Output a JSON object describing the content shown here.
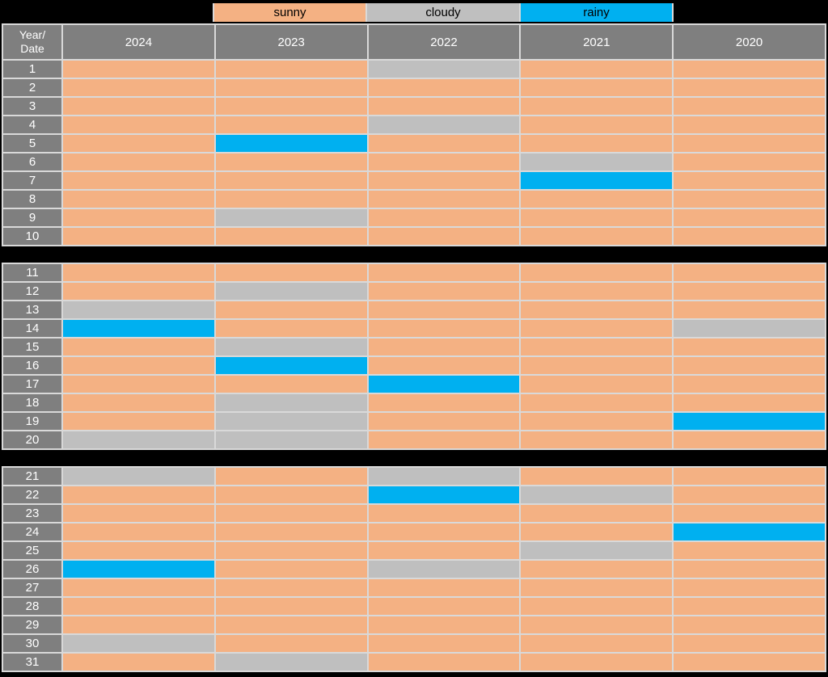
{
  "colors": {
    "sunny": "#F4B183",
    "cloudy": "#BFBFBF",
    "rainy": "#00B0F0",
    "header_bg": "#7F7F7F",
    "header_text": "#FFFFFF",
    "gridline": "#D9D9D9",
    "background": "#000000"
  },
  "chart_data": {
    "type": "heatmap",
    "title": "",
    "row_label_header": [
      "Year/",
      "Date"
    ],
    "columns": [
      "2024",
      "2023",
      "2022",
      "2021",
      "2020"
    ],
    "legend": [
      {
        "label": "sunny",
        "color": "#F4B183"
      },
      {
        "label": "cloudy",
        "color": "#BFBFBF"
      },
      {
        "label": "rainy",
        "color": "#00B0F0"
      }
    ],
    "legend_position": "top",
    "grid": "light gridlines on black background, three row sections",
    "sections": [
      {
        "from": 1,
        "to": 10
      },
      {
        "from": 11,
        "to": 20
      },
      {
        "from": 21,
        "to": 31
      }
    ],
    "rows": [
      {
        "date": 1,
        "values": [
          "sunny",
          "sunny",
          "cloudy",
          "sunny",
          "sunny"
        ]
      },
      {
        "date": 2,
        "values": [
          "sunny",
          "sunny",
          "sunny",
          "sunny",
          "sunny"
        ]
      },
      {
        "date": 3,
        "values": [
          "sunny",
          "sunny",
          "sunny",
          "sunny",
          "sunny"
        ]
      },
      {
        "date": 4,
        "values": [
          "sunny",
          "sunny",
          "cloudy",
          "sunny",
          "sunny"
        ]
      },
      {
        "date": 5,
        "values": [
          "sunny",
          "rainy",
          "sunny",
          "sunny",
          "sunny"
        ]
      },
      {
        "date": 6,
        "values": [
          "sunny",
          "sunny",
          "sunny",
          "cloudy",
          "sunny"
        ]
      },
      {
        "date": 7,
        "values": [
          "sunny",
          "sunny",
          "sunny",
          "rainy",
          "sunny"
        ]
      },
      {
        "date": 8,
        "values": [
          "sunny",
          "sunny",
          "sunny",
          "sunny",
          "sunny"
        ]
      },
      {
        "date": 9,
        "values": [
          "sunny",
          "cloudy",
          "sunny",
          "sunny",
          "sunny"
        ]
      },
      {
        "date": 10,
        "values": [
          "sunny",
          "sunny",
          "sunny",
          "sunny",
          "sunny"
        ]
      },
      {
        "date": 11,
        "values": [
          "sunny",
          "sunny",
          "sunny",
          "sunny",
          "sunny"
        ]
      },
      {
        "date": 12,
        "values": [
          "sunny",
          "cloudy",
          "sunny",
          "sunny",
          "sunny"
        ]
      },
      {
        "date": 13,
        "values": [
          "cloudy",
          "sunny",
          "sunny",
          "sunny",
          "sunny"
        ]
      },
      {
        "date": 14,
        "values": [
          "rainy",
          "sunny",
          "sunny",
          "sunny",
          "cloudy"
        ]
      },
      {
        "date": 15,
        "values": [
          "sunny",
          "cloudy",
          "sunny",
          "sunny",
          "sunny"
        ]
      },
      {
        "date": 16,
        "values": [
          "sunny",
          "rainy",
          "sunny",
          "sunny",
          "sunny"
        ]
      },
      {
        "date": 17,
        "values": [
          "sunny",
          "sunny",
          "rainy",
          "sunny",
          "sunny"
        ]
      },
      {
        "date": 18,
        "values": [
          "sunny",
          "cloudy",
          "sunny",
          "sunny",
          "sunny"
        ]
      },
      {
        "date": 19,
        "values": [
          "sunny",
          "cloudy",
          "sunny",
          "sunny",
          "rainy"
        ]
      },
      {
        "date": 20,
        "values": [
          "cloudy",
          "cloudy",
          "sunny",
          "sunny",
          "sunny"
        ]
      },
      {
        "date": 21,
        "values": [
          "cloudy",
          "sunny",
          "cloudy",
          "sunny",
          "sunny"
        ]
      },
      {
        "date": 22,
        "values": [
          "sunny",
          "sunny",
          "rainy",
          "cloudy",
          "sunny"
        ]
      },
      {
        "date": 23,
        "values": [
          "sunny",
          "sunny",
          "sunny",
          "sunny",
          "sunny"
        ]
      },
      {
        "date": 24,
        "values": [
          "sunny",
          "sunny",
          "sunny",
          "sunny",
          "rainy"
        ]
      },
      {
        "date": 25,
        "values": [
          "sunny",
          "sunny",
          "sunny",
          "cloudy",
          "sunny"
        ]
      },
      {
        "date": 26,
        "values": [
          "rainy",
          "sunny",
          "cloudy",
          "sunny",
          "sunny"
        ]
      },
      {
        "date": 27,
        "values": [
          "sunny",
          "sunny",
          "sunny",
          "sunny",
          "sunny"
        ]
      },
      {
        "date": 28,
        "values": [
          "sunny",
          "sunny",
          "sunny",
          "sunny",
          "sunny"
        ]
      },
      {
        "date": 29,
        "values": [
          "sunny",
          "sunny",
          "sunny",
          "sunny",
          "sunny"
        ]
      },
      {
        "date": 30,
        "values": [
          "cloudy",
          "sunny",
          "sunny",
          "sunny",
          "sunny"
        ]
      },
      {
        "date": 31,
        "values": [
          "sunny",
          "cloudy",
          "sunny",
          "sunny",
          "sunny"
        ]
      }
    ]
  }
}
